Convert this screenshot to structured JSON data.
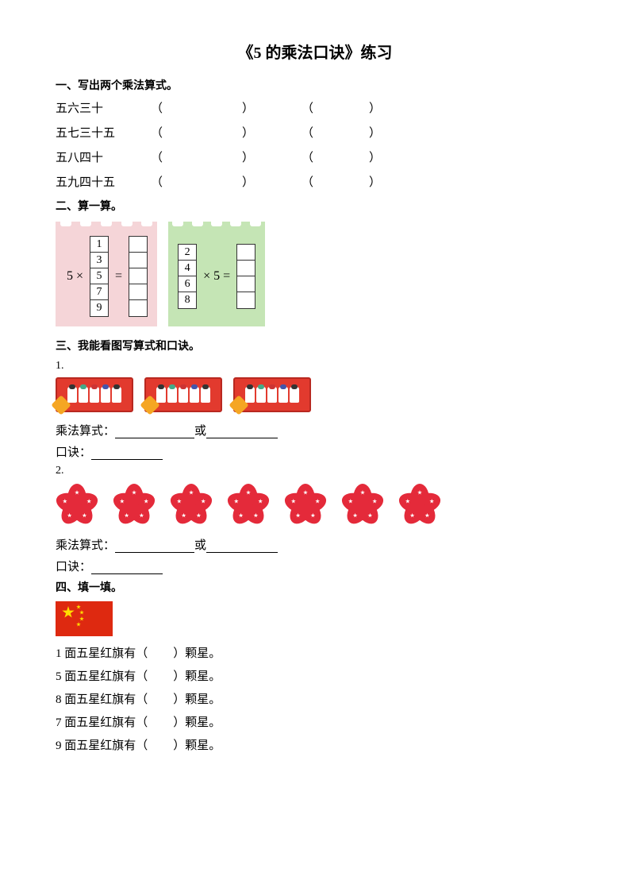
{
  "title": "《5 的乘法口诀》练习",
  "section1": {
    "header": "一、写出两个乘法算式。",
    "rows": [
      {
        "label": "五六三十"
      },
      {
        "label": "五七三十五"
      },
      {
        "label": "五八四十"
      },
      {
        "label": "五九四十五"
      }
    ]
  },
  "section2": {
    "header": "二、算一算。",
    "block1": {
      "bg_color": "#f5d5d8",
      "prefix": "5 ×",
      "values": [
        "1",
        "3",
        "5",
        "7",
        "9"
      ],
      "eq": "=",
      "result_cells": 5
    },
    "block2": {
      "bg_color": "#c5e5b5",
      "values": [
        "2",
        "4",
        "6",
        "8"
      ],
      "suffix": "× 5 =",
      "result_cells": 4
    }
  },
  "section3": {
    "header": "三、我能看图写算式和口诀。",
    "q1": {
      "num": "1.",
      "box_count": 3,
      "toys_per_box": 5,
      "expr_label": "乘法算式：",
      "or": "或",
      "formula_label": "口诀："
    },
    "q2": {
      "num": "2.",
      "flower_count": 7,
      "petals_per_flower": 5,
      "flower_color": "#e42a3a",
      "expr_label": "乘法算式：",
      "or": "或",
      "formula_label": "口诀："
    }
  },
  "section4": {
    "header": "四、填一填。",
    "flag": {
      "bg_color": "#de2910",
      "star_color": "#ffde00"
    },
    "lines": [
      {
        "pre": "1 面五星红旗有（",
        "post": "）颗星。"
      },
      {
        "pre": "5 面五星红旗有（",
        "post": "）颗星。"
      },
      {
        "pre": "8 面五星红旗有（",
        "post": "）颗星。"
      },
      {
        "pre": "7 面五星红旗有（",
        "post": "）颗星。"
      },
      {
        "pre": "9 面五星红旗有（",
        "post": "）颗星。"
      }
    ]
  }
}
